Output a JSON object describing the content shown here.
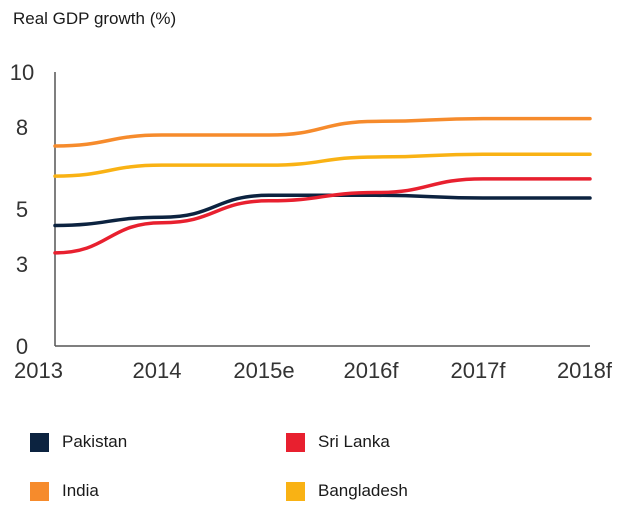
{
  "chart_data": {
    "type": "line",
    "title": "Real GDP growth (%)",
    "xlabel": "",
    "ylabel": "",
    "categories": [
      "2013",
      "2014",
      "2015e",
      "2016f",
      "2017f",
      "2018f"
    ],
    "ylim": [
      0,
      10
    ],
    "yticks": [
      "0",
      "3",
      "5",
      "8",
      "10"
    ],
    "grid": false,
    "legend_position": "bottom",
    "series": [
      {
        "name": "Pakistan",
        "color": "#0c2340",
        "values": [
          4.4,
          4.7,
          5.5,
          5.5,
          5.4,
          5.4
        ]
      },
      {
        "name": "Sri Lanka",
        "color": "#e8202f",
        "values": [
          3.4,
          4.5,
          5.3,
          5.6,
          6.1,
          6.1
        ]
      },
      {
        "name": "India",
        "color": "#f68b2c",
        "values": [
          7.3,
          7.7,
          7.7,
          8.2,
          8.3,
          8.3
        ]
      },
      {
        "name": "Bangladesh",
        "color": "#f9b214",
        "values": [
          6.2,
          6.6,
          6.6,
          6.9,
          7.0,
          7.0
        ]
      }
    ]
  }
}
